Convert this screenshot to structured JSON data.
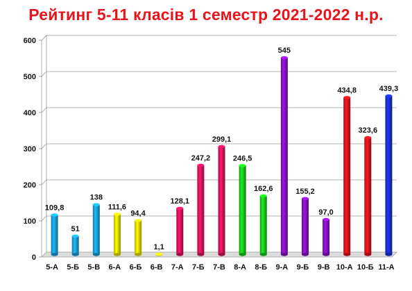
{
  "chart_data": {
    "type": "bar",
    "title": "Рейтинг 5-11 класів 1 семестр 2021-2022 н.р.",
    "categories": [
      "5-А",
      "5-Б",
      "5-В",
      "6-А",
      "6-Б",
      "6-В",
      "7-А",
      "7-Б",
      "7-В",
      "8-А",
      "8-Б",
      "9-А",
      "9-Б",
      "9-В",
      "10-А",
      "10-Б",
      "11-А"
    ],
    "values": [
      109.8,
      51,
      138,
      111.6,
      94.4,
      1.1,
      128.1,
      247.2,
      299.1,
      246.5,
      162.6,
      545,
      155.2,
      97.0,
      434.8,
      323.6,
      439.3
    ],
    "data_labels": [
      "109,8",
      "51",
      "138",
      "111,6",
      "94,4",
      "1,1",
      "128,1",
      "247,2",
      "299,1",
      "246,5",
      "162,6",
      "545",
      "155,2",
      "97,0",
      "434,8",
      "323,6",
      "439,3"
    ],
    "colors": [
      "#1aa3e0",
      "#1aa3e0",
      "#1aa3e0",
      "#f2e600",
      "#f2e600",
      "#f2e600",
      "#e0155e",
      "#e0155e",
      "#e0155e",
      "#1ad11a",
      "#1ad11a",
      "#8a12c8",
      "#8a12c8",
      "#8a12c8",
      "#e8141b",
      "#e8141b",
      "#1a2fd6"
    ],
    "yticks": [
      "0",
      "100",
      "200",
      "300",
      "400",
      "500",
      "600"
    ],
    "ylim": [
      0,
      600
    ],
    "grid": true,
    "legend": "none"
  }
}
